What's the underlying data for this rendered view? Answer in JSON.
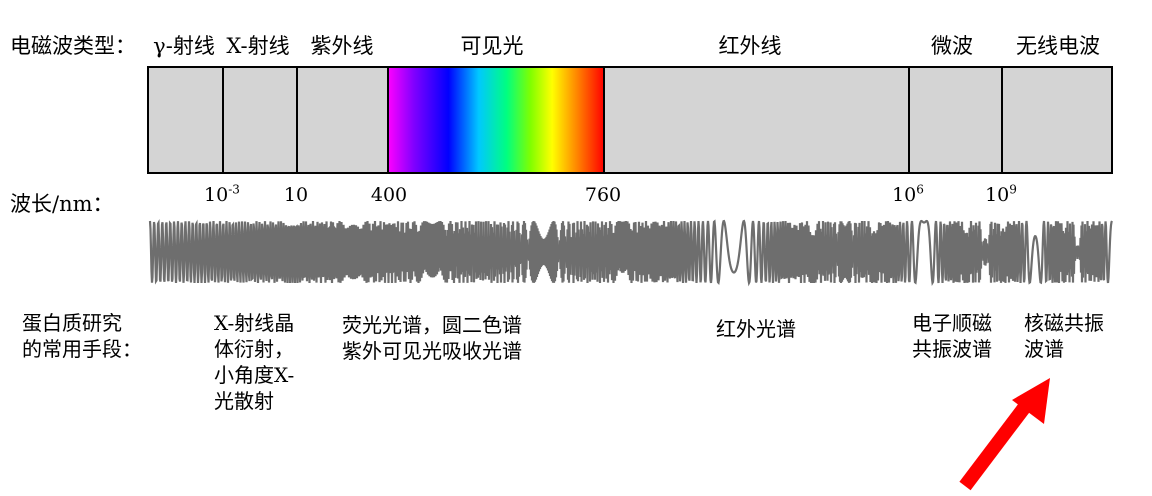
{
  "header": {
    "type_label": "电磁波类型："
  },
  "bands": [
    {
      "id": "gamma",
      "label": "γ-射线"
    },
    {
      "id": "xray",
      "label": "X-射线"
    },
    {
      "id": "uv",
      "label": "紫外线"
    },
    {
      "id": "visible",
      "label": "可见光"
    },
    {
      "id": "ir",
      "label": "红外线"
    },
    {
      "id": "microwave",
      "label": "微波"
    },
    {
      "id": "radio",
      "label": "无线电波"
    }
  ],
  "wavelength": {
    "label": "波长/nm：",
    "ticks": [
      {
        "base": "10",
        "exp": "-3"
      },
      {
        "base": "10",
        "exp": ""
      },
      {
        "base": "400",
        "exp": ""
      },
      {
        "base": "760",
        "exp": ""
      },
      {
        "base": "10",
        "exp": "6"
      },
      {
        "base": "10",
        "exp": "9"
      }
    ]
  },
  "methods": {
    "label_line1": "蛋白质研究",
    "label_line2": "的常用手段：",
    "items": [
      {
        "lines": [
          "X-射线晶",
          "体衍射，",
          "小角度X-",
          "光散射"
        ]
      },
      {
        "lines": [
          "荧光光谱，圆二色谱",
          "紫外可见光吸收光谱"
        ]
      },
      {
        "lines": [
          "红外光谱"
        ]
      },
      {
        "lines": [
          "电子顺磁",
          "共振波谱"
        ]
      },
      {
        "lines": [
          "核磁共振",
          "波谱"
        ]
      }
    ]
  },
  "colors": {
    "bar_fill": "#d4d4d4",
    "wave": "#6e6e6e",
    "arrow": "#ff0000"
  },
  "icons": {
    "arrow": "red-arrow-icon"
  }
}
